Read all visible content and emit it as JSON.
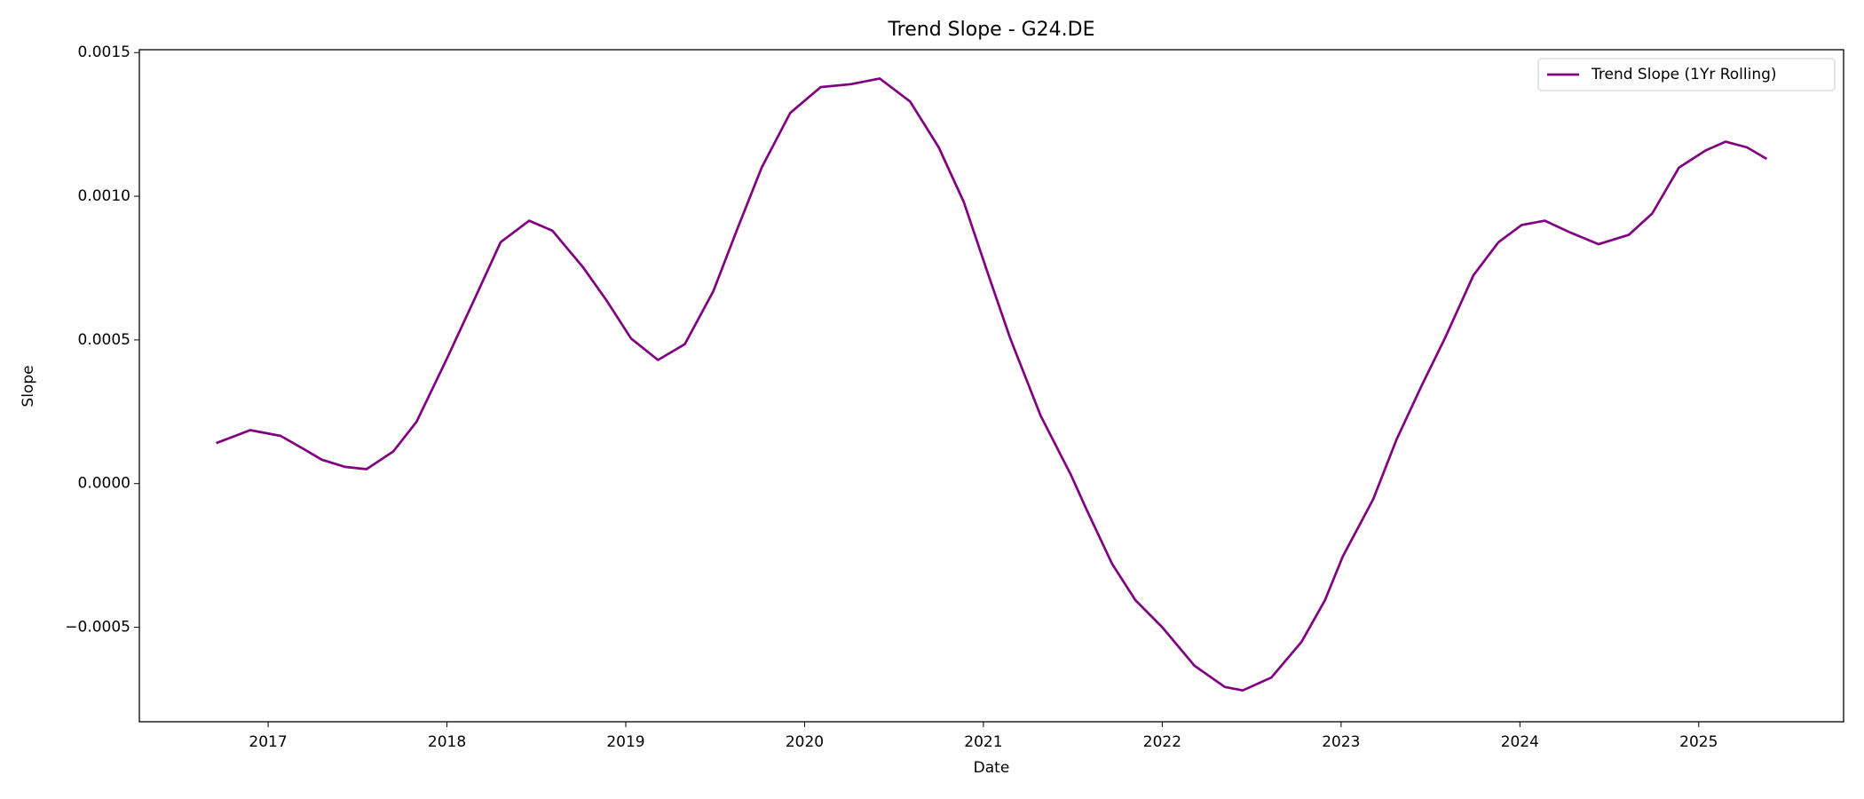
{
  "chart_data": {
    "type": "line",
    "title": "Trend Slope - G24.DE",
    "x_label": "Date",
    "y_label": "Slope",
    "x": [
      2016.71,
      2016.9,
      2017.07,
      2017.2,
      2017.3,
      2017.43,
      2017.55,
      2017.7,
      2017.83,
      2018.0,
      2018.16,
      2018.3,
      2018.46,
      2018.59,
      2018.76,
      2018.89,
      2019.03,
      2019.18,
      2019.33,
      2019.49,
      2019.62,
      2019.76,
      2019.92,
      2020.09,
      2020.26,
      2020.42,
      2020.59,
      2020.75,
      2020.89,
      2021.02,
      2021.15,
      2021.32,
      2021.49,
      2021.58,
      2021.72,
      2021.85,
      2022.0,
      2022.18,
      2022.35,
      2022.45,
      2022.61,
      2022.78,
      2022.91,
      2023.01,
      2023.18,
      2023.31,
      2023.45,
      2023.58,
      2023.74,
      2023.88,
      2024.01,
      2024.14,
      2024.28,
      2024.44,
      2024.61,
      2024.74,
      2024.89,
      2025.04,
      2025.15,
      2025.27,
      2025.38
    ],
    "series": [
      {
        "name": "Trend Slope (1Yr Rolling)",
        "color": "#800080",
        "values": [
          0.000141,
          0.000186,
          0.000166,
          0.00012,
          8.3e-05,
          5.8e-05,
          5e-05,
          0.000112,
          0.000215,
          0.000435,
          0.00065,
          0.00084,
          0.000915,
          0.00088,
          0.000754,
          0.00064,
          0.000505,
          0.00043,
          0.000485,
          0.00067,
          0.00088,
          0.0011,
          0.00129,
          0.00138,
          0.00139,
          0.00141,
          0.00133,
          0.00117,
          0.00098,
          0.00074,
          0.000505,
          0.000236,
          2.9e-05,
          -9.5e-05,
          -0.00028,
          -0.000406,
          -0.0005,
          -0.000634,
          -0.000708,
          -0.00072,
          -0.000675,
          -0.00055,
          -0.000406,
          -0.000253,
          -5.4e-05,
          0.000153,
          0.00034,
          0.000505,
          0.000725,
          0.00084,
          0.0009,
          0.000915,
          0.000874,
          0.000833,
          0.000866,
          0.00094,
          0.0011,
          0.00116,
          0.00119,
          0.00117,
          0.00113
        ]
      }
    ],
    "xlim": [
      2016.28,
      2025.81
    ],
    "xticks": [
      2017,
      2018,
      2019,
      2020,
      2021,
      2022,
      2023,
      2024,
      2025
    ],
    "ylim": [
      -0.000829,
      0.00151
    ],
    "yticks": [
      {
        "value": -0.0005,
        "label": "−0.0005"
      },
      {
        "value": 0,
        "label": "0.0000"
      },
      0.0005,
      {
        "value": 0.001,
        "label": "0.0010"
      },
      0.0015
    ],
    "legend": "upper right",
    "grid": false
  }
}
